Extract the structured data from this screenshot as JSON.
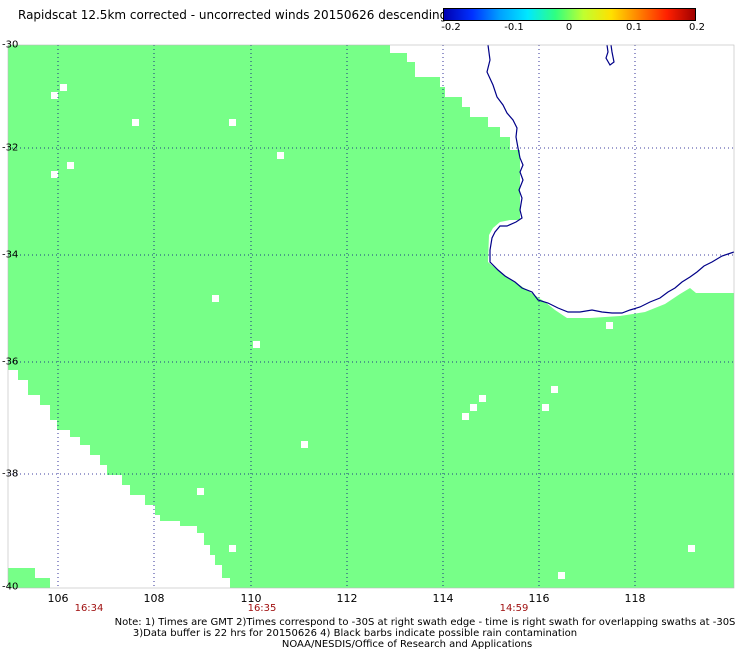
{
  "title": "Rapidscat 12.5km corrected - uncorrected winds 20150626 descending",
  "colorbar": {
    "labels": [
      "-0.2",
      "-0.1",
      "0",
      "0.1",
      "0.2"
    ],
    "values": [
      -0.2,
      -0.1,
      0,
      0.1,
      0.2
    ],
    "colors": [
      "#0000b0",
      "#00e8ff",
      "#30ff80",
      "#ffe000",
      "#a00000"
    ]
  },
  "map": {
    "lat_range": [
      -40,
      -30
    ],
    "lon_range": [
      105,
      120
    ],
    "lat_labels": [
      "-30",
      "-32",
      "-34",
      "-36",
      "-38",
      "-40"
    ],
    "lon_labels": [
      "106",
      "108",
      "110",
      "112",
      "114",
      "116",
      "118"
    ],
    "swath_color": "#77ff88",
    "coast_color": "#000088",
    "grid": "dotted"
  },
  "times": [
    "16:34",
    "16:35",
    "14:59"
  ],
  "notes": [
    "Note: 1) Times are GMT 2)Times correspond to -30S at right swath edge - time is right swath for overlapping swaths at -30S",
    "3)Data buffer is 22 hrs for 20150626 4) Black barbs indicate possible rain contamination",
    "NOAA/NESDIS/Office of Research and Applications"
  ]
}
